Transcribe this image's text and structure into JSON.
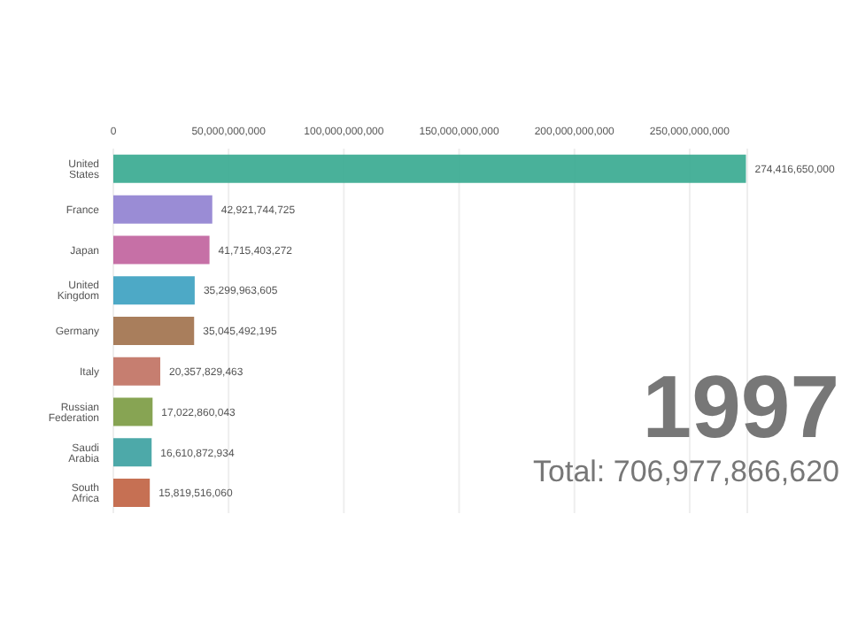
{
  "chart_data": {
    "type": "bar",
    "orientation": "horizontal",
    "categories": [
      "United States",
      "France",
      "Japan",
      "United Kingdom",
      "Germany",
      "Italy",
      "Russian Federation",
      "Saudi Arabia",
      "South Africa"
    ],
    "values": [
      274416650000,
      42921744725,
      41715403272,
      35299963605,
      35045492195,
      20357829463,
      17022860043,
      16610872934,
      15819516060
    ],
    "colors": [
      "#35a98f",
      "#8f7fd0",
      "#c0609c",
      "#3aa0c0",
      "#a0704a",
      "#c07060",
      "#7a9a40",
      "#3aa0a0",
      "#c06040"
    ],
    "value_labels": [
      "274,416,650,000",
      "42,921,744,725",
      "41,715,403,272",
      "35,299,963,605",
      "35,045,492,195",
      "20,357,829,463",
      "17,022,860,043",
      "16,610,872,934",
      "15,819,516,060"
    ],
    "xlim": [
      0,
      275000000000
    ],
    "xticks": [
      {
        "value": 0,
        "label": "0"
      },
      {
        "value": 50000000000,
        "label": "50,000,000,000"
      },
      {
        "value": 100000000000,
        "label": "100,000,000,000"
      },
      {
        "value": 150000000000,
        "label": "150,000,000,000"
      },
      {
        "value": 200000000000,
        "label": "200,000,000,000"
      },
      {
        "value": 250000000000,
        "label": "250,000,000,000"
      }
    ],
    "grid": "x",
    "annotations": [
      "1997",
      "Total: 706,977,866,620"
    ]
  }
}
